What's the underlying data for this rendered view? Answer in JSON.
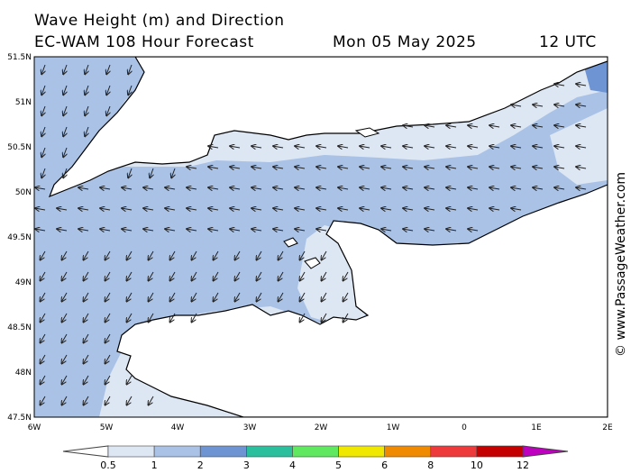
{
  "header": {
    "line1": "Wave Height (m) and Direction",
    "model": "EC-WAM 108 Hour Forecast",
    "date": "Mon 05 May 2025",
    "time": "12 UTC"
  },
  "axes": {
    "lat_labels": [
      "51.5N",
      "51N",
      "50.5N",
      "50N",
      "49.5N",
      "49N",
      "48.5N",
      "48N",
      "47.5N"
    ],
    "lon_labels": [
      "6W",
      "5W",
      "4W",
      "3W",
      "2W",
      "1W",
      "0",
      "1E",
      "2E"
    ]
  },
  "watermark": "© www.PassageWeather.com",
  "legend": {
    "ticks": [
      "0.5",
      "1",
      "2",
      "3",
      "4",
      "5",
      "6",
      "8",
      "10",
      "12"
    ],
    "colors": [
      "#dde6f3",
      "#a9c2e6",
      "#6f94d4",
      "#2bbf9d",
      "#5fe860",
      "#f0e800",
      "#f08a00",
      "#ee3a3a",
      "#c40000",
      "#c000c0"
    ]
  },
  "map_colors": {
    "sea_light": "#dde6f3",
    "sea_mid": "#a9c2e6",
    "sea_dark": "#6f94d4",
    "land": "#ffffff"
  }
}
